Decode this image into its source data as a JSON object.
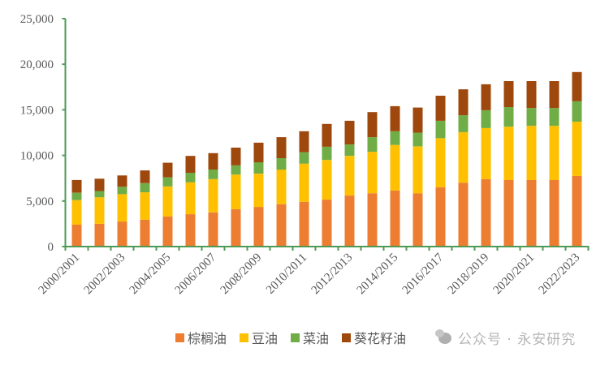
{
  "chart_data": {
    "type": "bar",
    "stacked": true,
    "title": "",
    "xlabel": "",
    "ylabel": "",
    "ylim": [
      0,
      25000
    ],
    "yticks": [
      0,
      5000,
      10000,
      15000,
      20000,
      25000
    ],
    "ytick_labels": [
      "0",
      "5,000",
      "10,000",
      "15,000",
      "20,000",
      "25,000"
    ],
    "grid": false,
    "legend_position": "bottom",
    "categories": [
      "2000/2001",
      "2001/2002",
      "2002/2003",
      "2003/2004",
      "2004/2005",
      "2005/2006",
      "2006/2007",
      "2007/2008",
      "2008/2009",
      "2009/2010",
      "2010/2011",
      "2011/2012",
      "2012/2013",
      "2013/2014",
      "2014/2015",
      "2015/2016",
      "2016/2017",
      "2017/2018",
      "2018/2019",
      "2019/2020",
      "2020/2021",
      "2021/2022",
      "2022/2023"
    ],
    "xtick_labels_shown": [
      "2000/2001",
      "2002/2003",
      "2004/2005",
      "2006/2007",
      "2008/2009",
      "2010/2011",
      "2012/2013",
      "2014/2015",
      "2016/2017",
      "2018/2019",
      "2020/2021",
      "2022/2023"
    ],
    "series": [
      {
        "name": "棕榈油",
        "color": "#ED7D31",
        "values": [
          2400,
          2500,
          2750,
          2950,
          3300,
          3550,
          3750,
          4100,
          4350,
          4650,
          4900,
          5150,
          5600,
          5850,
          6150,
          5850,
          6500,
          7000,
          7400,
          7300,
          7300,
          7300,
          7750
        ]
      },
      {
        "name": "豆油",
        "color": "#FFC000",
        "values": [
          2700,
          2900,
          3000,
          3000,
          3300,
          3500,
          3650,
          3800,
          3650,
          3800,
          4200,
          4350,
          4350,
          4550,
          5000,
          5150,
          5400,
          5550,
          5600,
          5850,
          5950,
          5950,
          5950
        ]
      },
      {
        "name": "菜油",
        "color": "#70AD47",
        "values": [
          800,
          700,
          800,
          1000,
          1000,
          1050,
          1050,
          1000,
          1250,
          1250,
          1250,
          1450,
          1250,
          1600,
          1500,
          1500,
          1900,
          1850,
          1950,
          2150,
          1950,
          1950,
          2250
        ]
      },
      {
        "name": "葵花籽油",
        "color": "#9E480E",
        "values": [
          1400,
          1350,
          1250,
          1400,
          1600,
          1850,
          1800,
          1950,
          2150,
          2300,
          2300,
          2500,
          2600,
          2750,
          2750,
          2750,
          2750,
          2850,
          2850,
          2850,
          2950,
          2950,
          3200
        ]
      }
    ]
  },
  "legend": {
    "items": [
      {
        "label": "棕榈油",
        "color": "#ED7D31"
      },
      {
        "label": "豆油",
        "color": "#FFC000"
      },
      {
        "label": "菜油",
        "color": "#70AD47"
      },
      {
        "label": "葵花籽油",
        "color": "#9E480E"
      }
    ]
  },
  "watermark": {
    "text": "公众号 · 永安研究"
  },
  "style": {
    "axis_color": "#4E9A53",
    "label_color": "#595959"
  }
}
